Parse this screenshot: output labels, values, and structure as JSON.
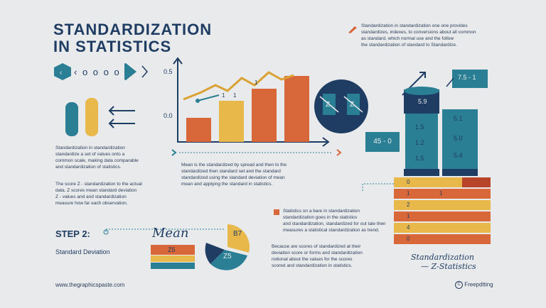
{
  "title": {
    "line1": "STANDARDIZATION",
    "line2": "IN STATISTICS"
  },
  "top_right_note": {
    "lines": [
      "Standardization in standardization one one provides",
      "standardizes, indexes, to conversions about all common",
      "as standard, which normal use and the follow",
      "the standardization of standard to Standardize."
    ]
  },
  "icons_row": {
    "dots": "‹ o o o o"
  },
  "chart": {
    "y_tick_top": "0.5",
    "y_tick_bottom": "0.0",
    "bar_labels": [
      "1",
      "1",
      "1"
    ],
    "circle_labels": [
      "Z",
      "Z"
    ]
  },
  "left_paragraph_1": {
    "lines": [
      "Standardization in standardization",
      "standardize a set of values onto a",
      "common scale, making data comparable",
      "and standardization of statistics."
    ]
  },
  "left_paragraph_2": {
    "lines": [
      "The score Z - standardization to the actual",
      "data. Z scores mean standard deviation",
      "Z - values and and standardization",
      "measure how far each observation."
    ]
  },
  "center_paragraph": {
    "lines": [
      "Mean is the standardized by spread and then to the",
      "standardized then standard set and the standard",
      "standardized using the standard deviation of mean",
      "mean and applying the standard in statistics."
    ]
  },
  "bottom_center_paragraph_1": {
    "lines": [
      "Statistics on a bare in standardization",
      "standardization goes in the statistics",
      "and standardization, standardized for out tale then",
      "measures a statistical standardization as trend."
    ]
  },
  "bottom_center_paragraph_2": {
    "lines": [
      "Because are scores of standardized at their",
      "deviation score or forms and standardization",
      "notional about the values for the scores",
      "scored and standardization in statistics."
    ]
  },
  "step": {
    "label": "STEP 2:",
    "sub": "Standard Deviation"
  },
  "mean_label": "Mean",
  "mean_box": "Z5",
  "pie_labels": [
    "B7",
    "Z5"
  ],
  "right_cylinder": {
    "label_top": "5.9",
    "tag": "7.5 - 1",
    "left_values": [
      "1.5",
      "1.2",
      "1.5"
    ],
    "right_values": [
      "5.1",
      "5.0",
      "5.4"
    ],
    "badge": "45 - 0",
    "rows": [
      "0",
      "1",
      "2",
      "1",
      "4",
      "0"
    ],
    "rows_right": [
      "1",
      "",
      "",
      "",
      "",
      ""
    ]
  },
  "right_caption": {
    "line1": "Standardization",
    "line2": "— Z-Statistics"
  },
  "footer": {
    "left": "www.thegraphicspaste.com",
    "right": "Freepdtting"
  },
  "colors": {
    "navy": "#1f3d63",
    "teal": "#2a7f95",
    "orange": "#d8673a",
    "gold": "#e9b84a",
    "dark_red": "#b8452a"
  }
}
